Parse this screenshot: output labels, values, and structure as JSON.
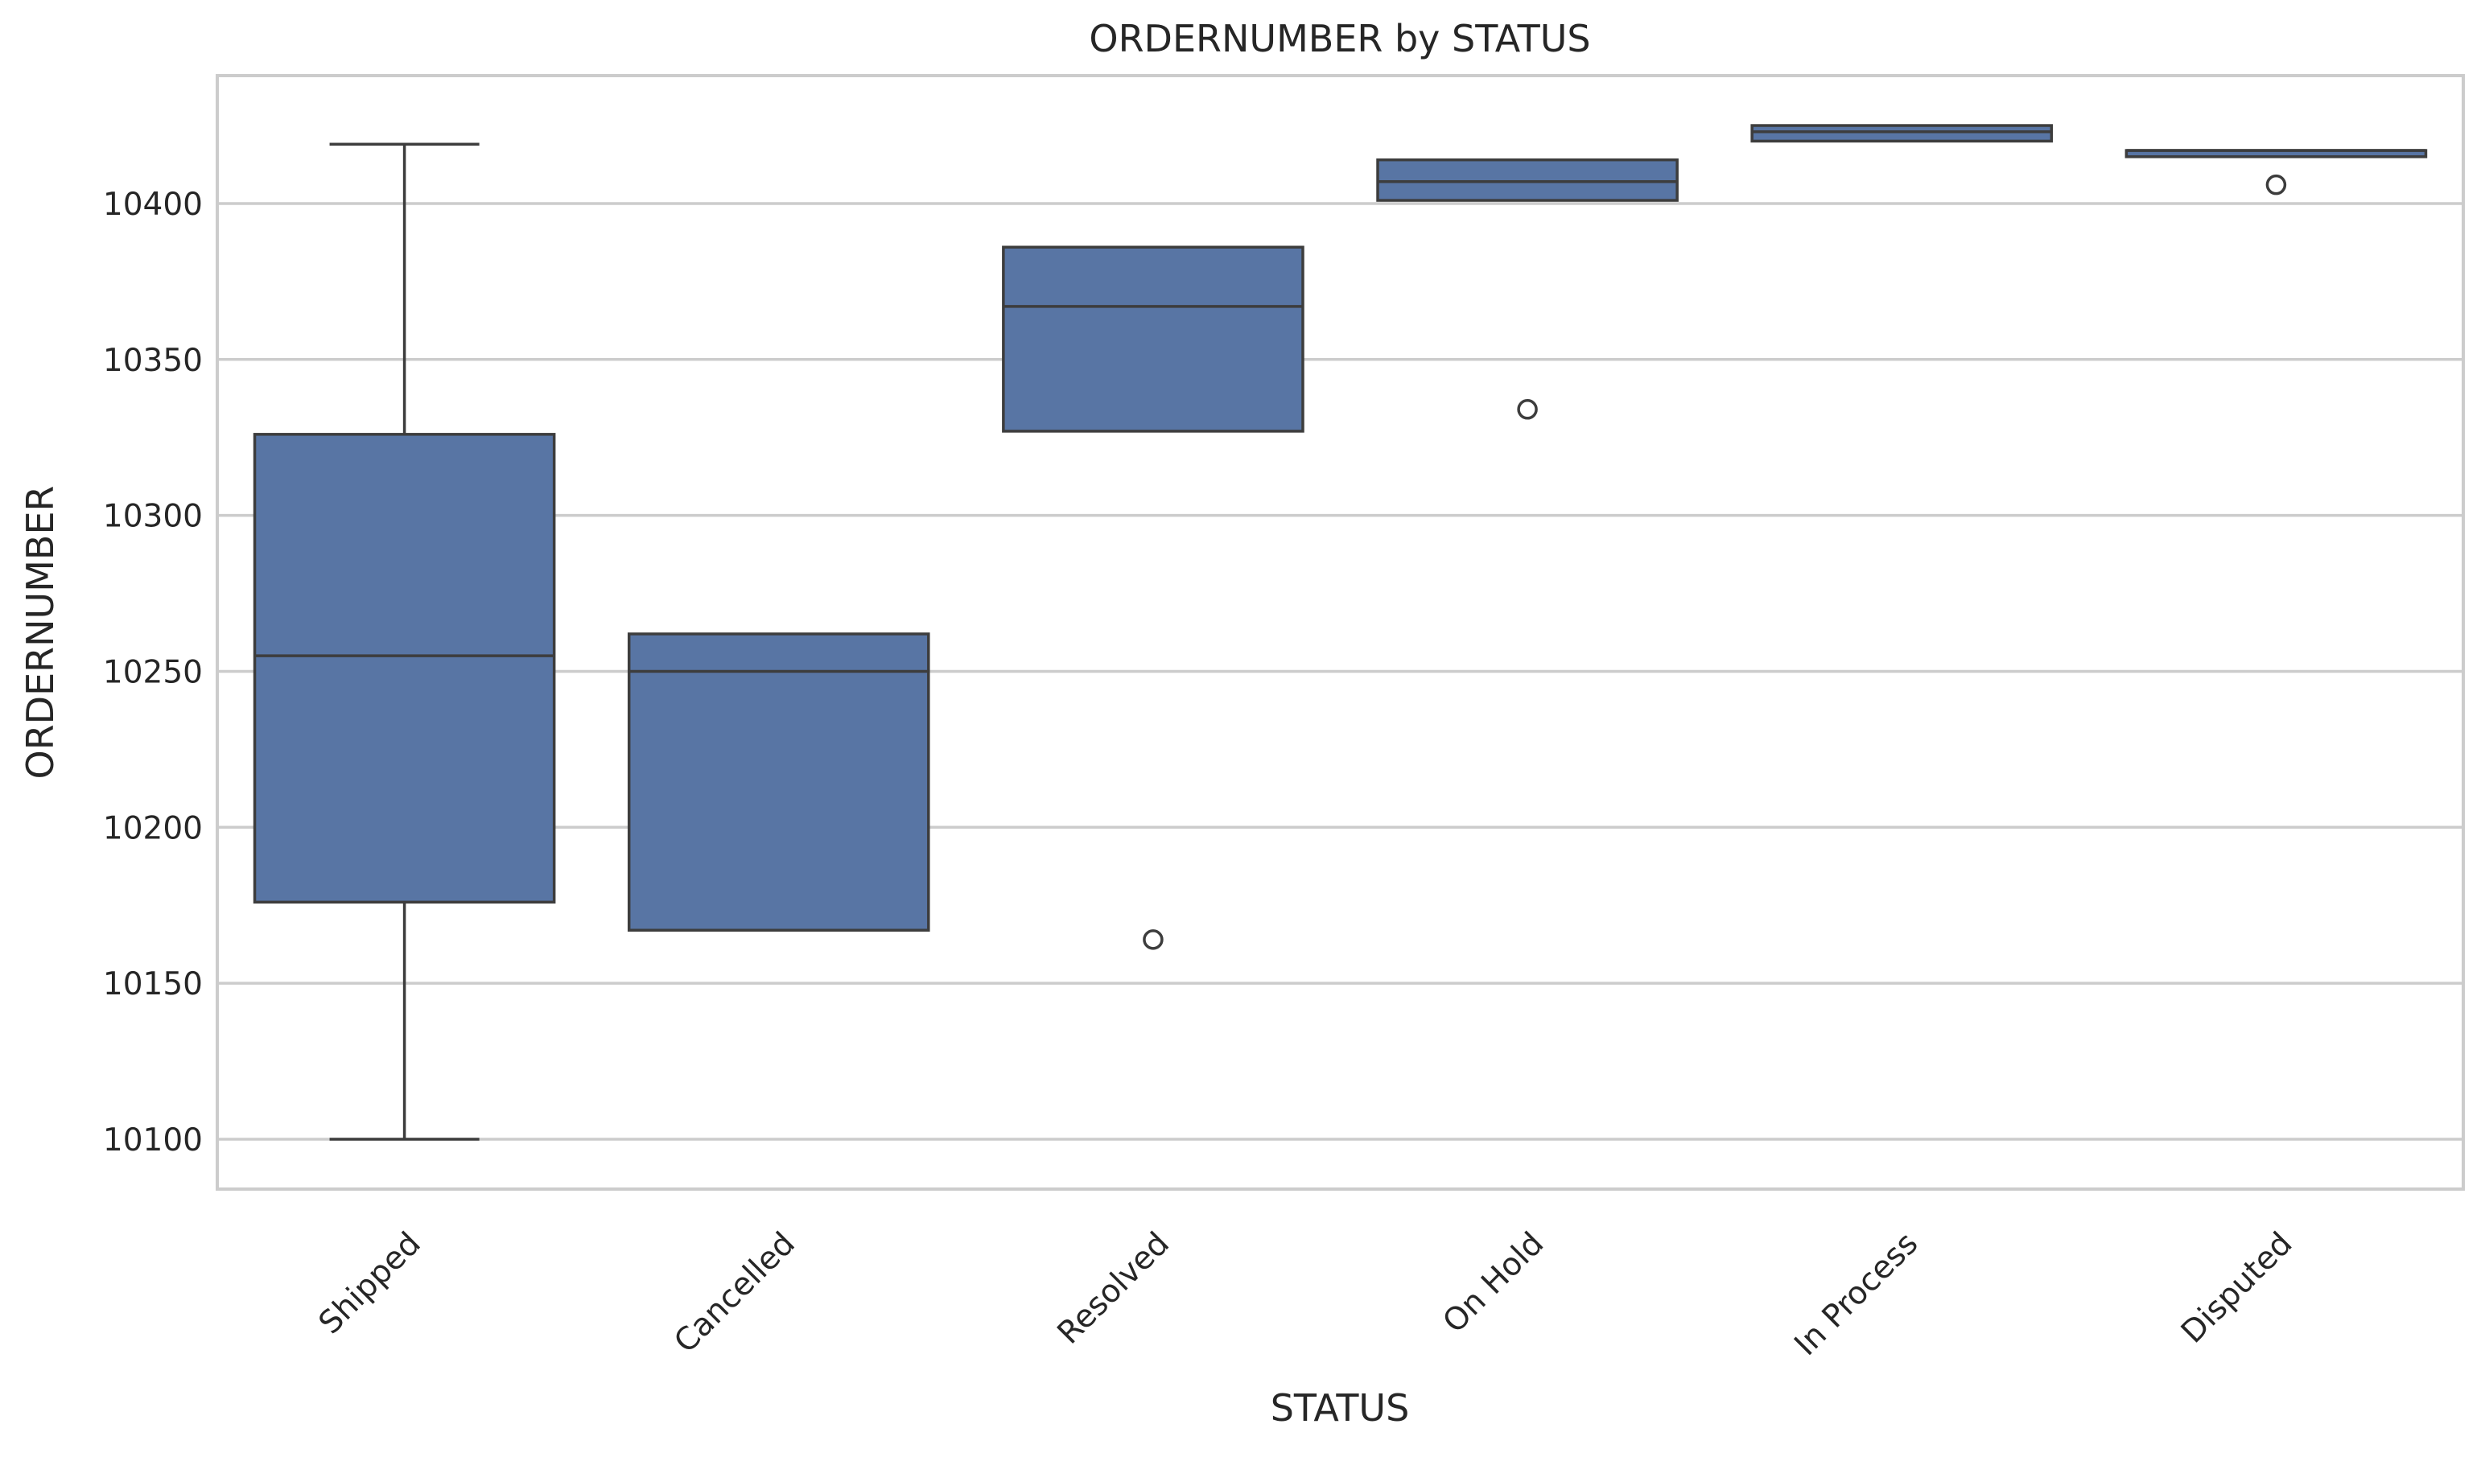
{
  "chart_data": {
    "type": "box",
    "title": "ORDERNUMBER by STATUS",
    "xlabel": "STATUS",
    "ylabel": "ORDERNUMBER",
    "ylim": [
      10084,
      10441
    ],
    "yticks": [
      10100,
      10150,
      10200,
      10250,
      10300,
      10350,
      10400
    ],
    "grid": "horizontal",
    "color": "#5875a4",
    "line_color": "#3d3d3d",
    "categories": [
      "Shipped",
      "Cancelled",
      "Resolved",
      "On Hold",
      "In Process",
      "Disputed"
    ],
    "boxes": [
      {
        "category": "Shipped",
        "whisker_low": 10100,
        "q1": 10176,
        "median": 10255,
        "q3": 10326,
        "whisker_high": 10419,
        "outliers": []
      },
      {
        "category": "Cancelled",
        "whisker_low": 10167,
        "q1": 10167,
        "median": 10250,
        "q3": 10262,
        "whisker_high": 10262,
        "outliers": []
      },
      {
        "category": "Resolved",
        "whisker_low": 10327,
        "q1": 10327,
        "median": 10367,
        "q3": 10386,
        "whisker_high": 10386,
        "outliers": [
          10164
        ]
      },
      {
        "category": "On Hold",
        "whisker_low": 10401,
        "q1": 10401,
        "median": 10407,
        "q3": 10414,
        "whisker_high": 10414,
        "outliers": [
          10334
        ]
      },
      {
        "category": "In Process",
        "whisker_low": 10420,
        "q1": 10420,
        "median": 10423,
        "q3": 10425,
        "whisker_high": 10425,
        "outliers": []
      },
      {
        "category": "Disputed",
        "whisker_low": 10415,
        "q1": 10415,
        "median": 10417,
        "q3": 10417,
        "whisker_high": 10417,
        "outliers": [
          10406
        ]
      }
    ]
  }
}
